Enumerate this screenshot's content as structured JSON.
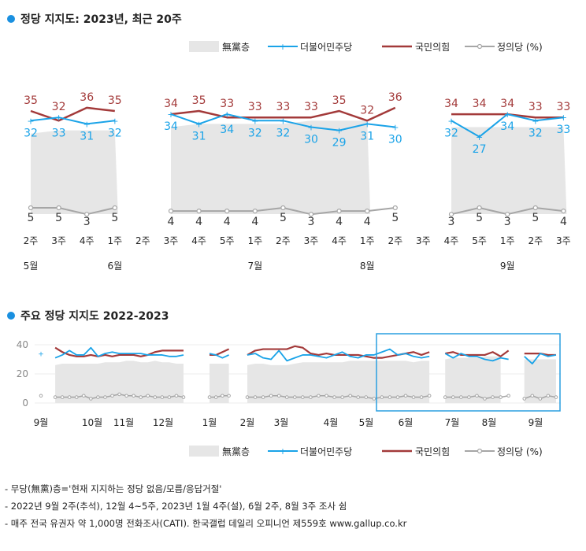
{
  "colors": {
    "unaffiliated": "#e6e6e6",
    "democratic": "#1aa3e8",
    "ppp": "#a33a3a",
    "justice": "#a6a6a6",
    "accent": "#1a90e0",
    "box": "#2a9fe0"
  },
  "legend": {
    "unaffiliated": "無黨층",
    "democratic": "더불어민주당",
    "ppp": "국민의힘",
    "justice": "정의당 (%)"
  },
  "notes": [
    "- 무당(無黨)층='현재 지지하는 정당 없음/모름/응답거절'",
    "- 2022년 9월 2주(추석), 12월 4~5주, 2023년 1월 4주(설), 6월 2주, 8월 3주 조사 쉼",
    "- 매주 전국 유권자 약 1,000명 전화조사(CATI). 한국갤럽 데일리 오피니언 제559호 www.gallup.co.kr"
  ],
  "chart_data": [
    {
      "type": "line",
      "title": "정당 지지도: 2023년, 최근 20주",
      "categories": [
        "2주",
        "3주",
        "4주",
        "1주",
        "2주",
        "3주",
        "4주",
        "5주",
        "1주",
        "2주",
        "3주",
        "4주",
        "1주",
        "2주",
        "3주",
        "4주",
        "5주",
        "1주",
        "2주",
        "3주"
      ],
      "month_labels": [
        {
          "label": "5월",
          "index": 0
        },
        {
          "label": "6월",
          "index": 3
        },
        {
          "label": "7월",
          "index": 8
        },
        {
          "label": "8월",
          "index": 12
        },
        {
          "label": "9월",
          "index": 17
        }
      ],
      "series": [
        {
          "name": "無黨층",
          "kind": "area",
          "values": [
            28,
            29,
            29,
            29,
            null,
            30,
            31,
            31,
            31,
            31,
            32,
            32,
            32,
            null,
            null,
            30,
            30,
            30,
            30,
            30
          ]
        },
        {
          "name": "더불어민주당",
          "values": [
            32,
            33,
            31,
            32,
            null,
            34,
            31,
            34,
            32,
            32,
            30,
            29,
            31,
            30,
            null,
            32,
            27,
            34,
            32,
            33
          ],
          "labels": [
            "32",
            "33",
            "31",
            "32",
            null,
            "34",
            "31",
            "34",
            "32",
            "32",
            "30",
            "29",
            "31",
            "30",
            null,
            "32",
            "27",
            "34",
            "32",
            "33"
          ]
        },
        {
          "name": "국민의힘",
          "values": [
            35,
            32,
            36,
            35,
            null,
            34,
            35,
            33,
            33,
            33,
            33,
            35,
            32,
            36,
            null,
            34,
            34,
            34,
            33,
            33
          ],
          "labels": [
            "35",
            "32",
            "36",
            "35",
            null,
            "34",
            "35",
            "33",
            "33",
            "33",
            "33",
            "35",
            "32",
            "36",
            null,
            "34",
            "34",
            "34",
            "33",
            "33"
          ]
        },
        {
          "name": "정의당 (%)",
          "values": [
            5,
            5,
            3,
            5,
            null,
            4,
            4,
            4,
            4,
            5,
            3,
            4,
            4,
            5,
            null,
            3,
            5,
            3,
            5,
            4
          ],
          "labels": [
            "5",
            "5",
            "3",
            "5",
            null,
            "4",
            "4",
            "4",
            "4",
            "5",
            "3",
            "4",
            "4",
            "5",
            null,
            "3",
            "5",
            "3",
            "5",
            "4"
          ]
        }
      ],
      "ylim": [
        0,
        40
      ]
    },
    {
      "type": "line",
      "title": "주요 정당 지지도 2022-2023",
      "y_ticks": [
        "40",
        "20",
        "0"
      ],
      "ylim": [
        0,
        40
      ],
      "month_labels": [
        "9월",
        "10월",
        "11월",
        "12월",
        "1월",
        "2월",
        "3월",
        "4월",
        "5월",
        "6월",
        "7월",
        "8월",
        "9월"
      ],
      "segments": [
        {
          "democratic": [
            34,
            null,
            31,
            33,
            36,
            33,
            33,
            38,
            32,
            34,
            35,
            34,
            34,
            34,
            34,
            33,
            33,
            33,
            32,
            32,
            33
          ],
          "ppp": [
            null,
            null,
            38,
            35,
            33,
            32,
            32,
            33,
            32,
            33,
            32,
            33,
            33,
            33,
            32,
            33,
            35,
            36,
            36,
            36,
            36
          ],
          "unaffiliated": [
            null,
            null,
            26,
            27,
            27,
            27,
            27,
            27,
            27,
            28,
            28,
            28,
            29,
            29,
            28,
            28,
            29,
            28,
            28,
            27,
            27
          ],
          "justice": [
            5,
            null,
            4,
            4,
            4,
            4,
            5,
            3,
            4,
            4,
            5,
            6,
            5,
            5,
            4,
            5,
            4,
            4,
            4,
            5,
            4
          ]
        },
        {
          "democratic": [
            34,
            33,
            31,
            33
          ],
          "ppp": [
            33,
            33,
            35,
            37
          ],
          "unaffiliated": [
            27,
            27,
            27,
            27
          ],
          "justice": [
            4,
            4,
            5,
            5
          ]
        },
        {
          "democratic": [
            33,
            34,
            31,
            30,
            36,
            29,
            31,
            33,
            33,
            32,
            31,
            33,
            35,
            32,
            31,
            33,
            33,
            35,
            37,
            33,
            34,
            32,
            31,
            32,
            null,
            34,
            31,
            34,
            32,
            32,
            30,
            29,
            31,
            30,
            null,
            32,
            27,
            34,
            32,
            33
          ],
          "ppp": [
            33,
            36,
            37,
            37,
            37,
            37,
            39,
            38,
            34,
            33,
            34,
            33,
            33,
            33,
            33,
            32,
            31,
            31,
            32,
            33,
            34,
            35,
            33,
            35,
            null,
            34,
            35,
            33,
            33,
            33,
            33,
            35,
            32,
            36,
            null,
            34,
            34,
            34,
            33,
            33
          ],
          "unaffiliated": [
            26,
            27,
            27,
            26,
            26,
            26,
            27,
            28,
            28,
            28,
            28,
            28,
            28,
            29,
            29,
            29,
            29,
            29,
            29,
            29,
            29,
            28,
            29,
            29,
            null,
            30,
            31,
            31,
            31,
            31,
            32,
            32,
            32,
            null,
            null,
            30,
            30,
            30,
            30,
            30
          ],
          "justice": [
            4,
            4,
            4,
            5,
            5,
            4,
            4,
            4,
            4,
            5,
            5,
            4,
            4,
            5,
            4,
            4,
            3,
            4,
            4,
            4,
            5,
            4,
            4,
            5,
            null,
            4,
            4,
            4,
            4,
            5,
            3,
            4,
            4,
            5,
            null,
            3,
            5,
            3,
            5,
            4
          ]
        }
      ]
    }
  ]
}
